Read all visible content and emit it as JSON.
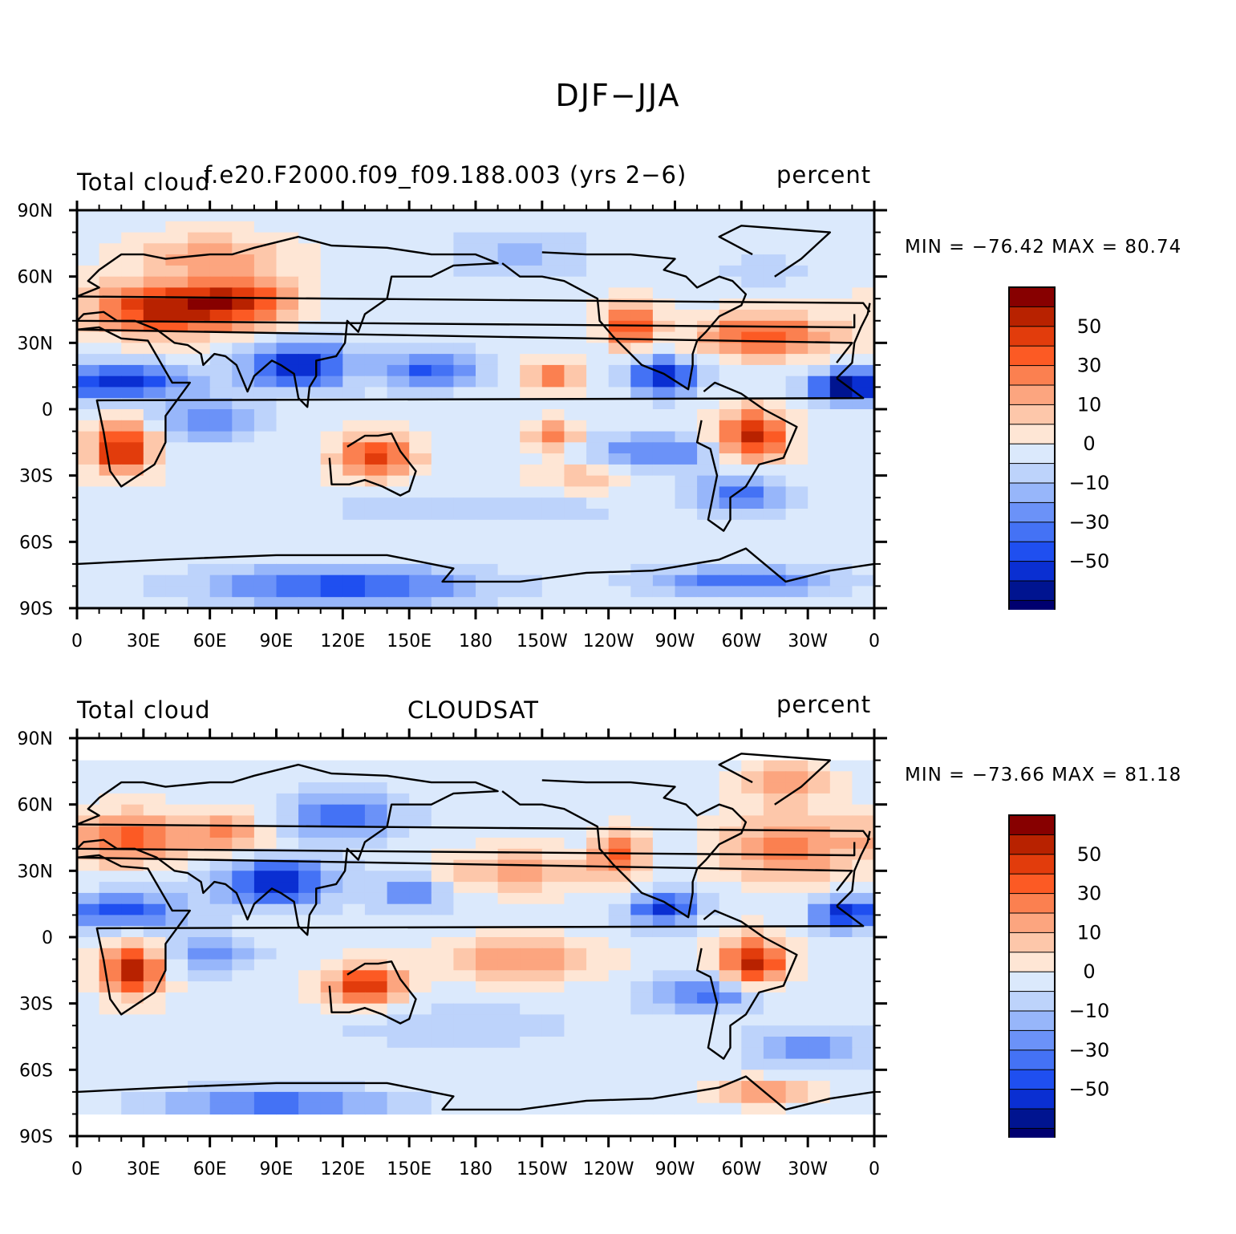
{
  "figure": {
    "title": "DJF−JJA"
  },
  "lat_labels": [
    "90N",
    "60N",
    "30N",
    "0",
    "30S",
    "60S",
    "90S"
  ],
  "lon_labels": [
    "0",
    "30E",
    "60E",
    "90E",
    "120E",
    "150E",
    "180",
    "150W",
    "120W",
    "90W",
    "60W",
    "30W",
    "0"
  ],
  "colorbar": {
    "labels": [
      "50",
      "30",
      "10",
      "0",
      "−10",
      "−30",
      "−50"
    ],
    "colors": [
      "#870000",
      "#b82200",
      "#e23c0c",
      "#fc5a24",
      "#fb8050",
      "#fca57f",
      "#fdc7aa",
      "#fee6d5",
      "#dbe9fc",
      "#bdd3fb",
      "#97b6fa",
      "#6b92f8",
      "#4472f5",
      "#1f4ff0",
      "#0a2fd2",
      "#001490",
      "#000070"
    ]
  },
  "panels": [
    {
      "id": "model",
      "left_text": "Total cloud",
      "center_text": "f.e20.F2000.f09_f09.188.003 (yrs 2−6)",
      "right_text": "percent",
      "stats": "MIN = −76.42 MAX =  80.74"
    },
    {
      "id": "obs",
      "left_text": "Total cloud",
      "center_text": "CLOUDSAT",
      "right_text": "percent",
      "stats": "MIN = −73.66 MAX =  81.18"
    }
  ]
}
